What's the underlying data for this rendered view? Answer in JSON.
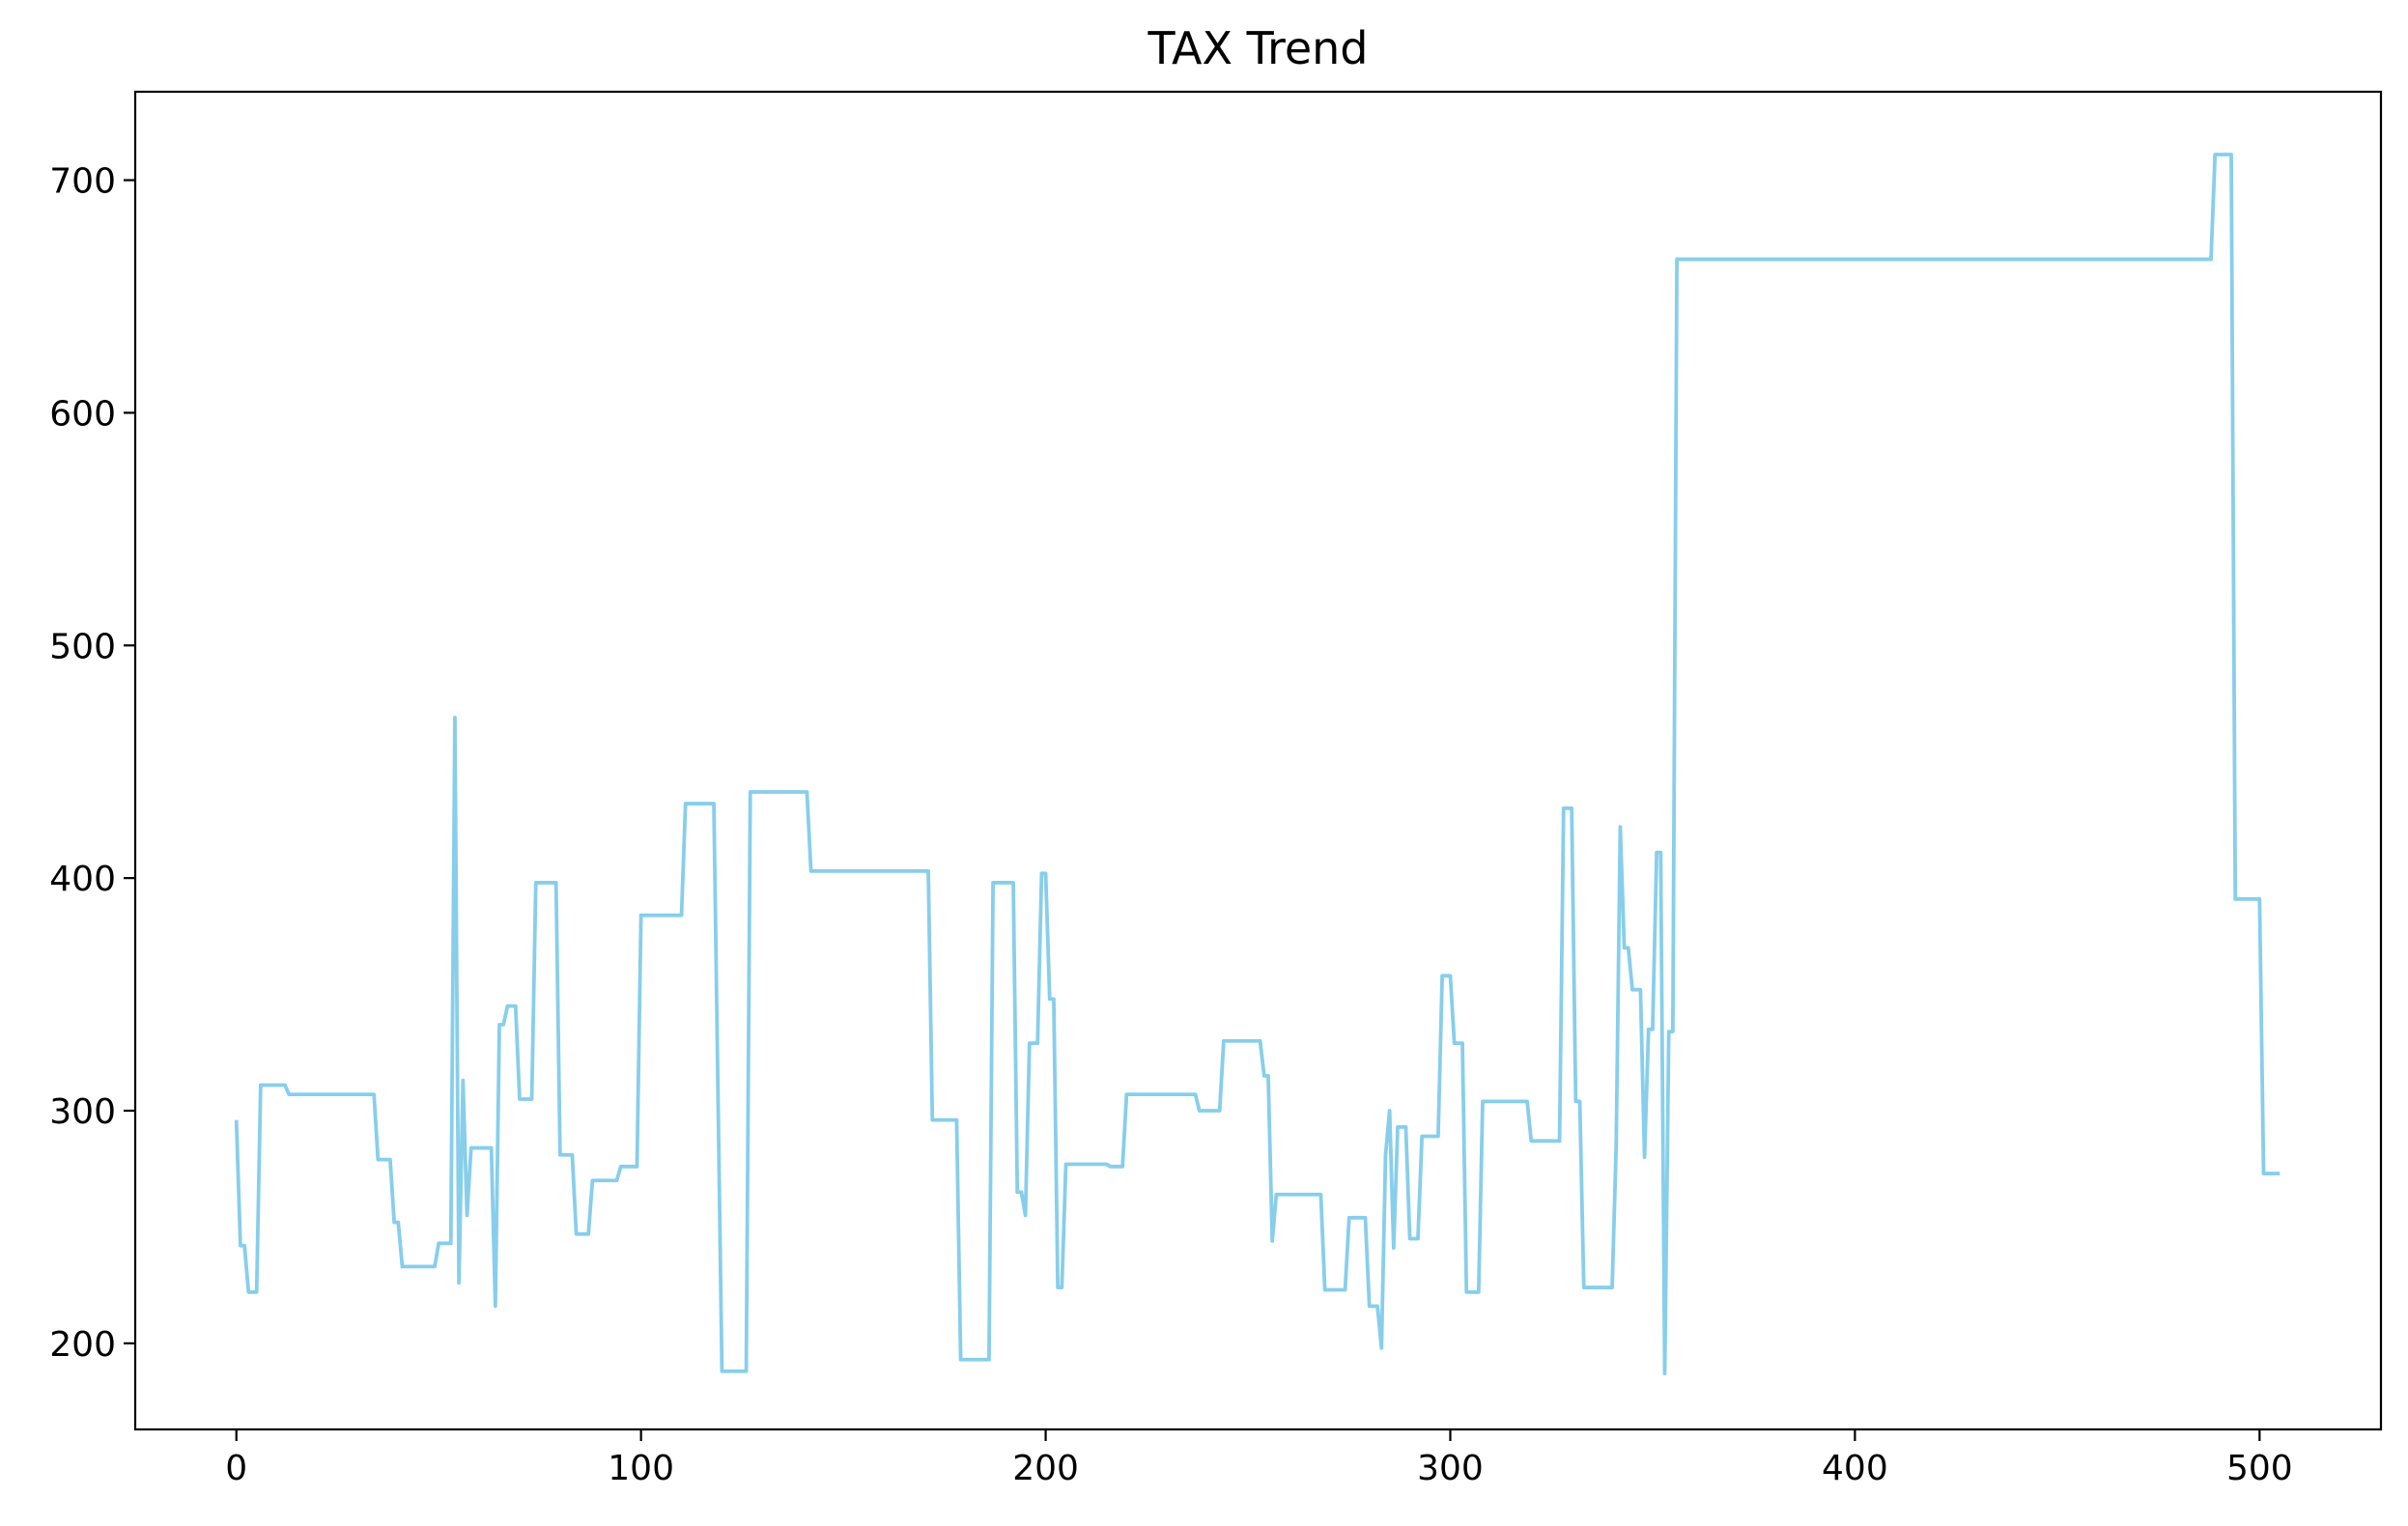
{
  "chart_data": {
    "type": "line",
    "title": "TAX Trend",
    "xlabel": "",
    "ylabel": "",
    "xlim": [
      -25,
      530
    ],
    "ylim": [
      163,
      738
    ],
    "xticks": [
      0,
      100,
      200,
      300,
      400,
      500
    ],
    "yticks": [
      200,
      300,
      400,
      500,
      600,
      700
    ],
    "grid": false,
    "legend": "none",
    "line_color": "#87CEEB",
    "series": [
      {
        "points": [
          [
            0,
            296
          ],
          [
            1,
            242
          ],
          [
            2,
            242
          ],
          [
            3,
            222
          ],
          [
            5,
            222
          ],
          [
            6,
            311
          ],
          [
            12,
            311
          ],
          [
            13,
            307
          ],
          [
            34,
            307
          ],
          [
            35,
            279
          ],
          [
            38,
            279
          ],
          [
            39,
            252
          ],
          [
            40,
            252
          ],
          [
            41,
            233
          ],
          [
            49,
            233
          ],
          [
            50,
            243
          ],
          [
            53,
            243
          ],
          [
            54,
            469
          ],
          [
            55,
            226
          ],
          [
            56,
            313
          ],
          [
            57,
            255
          ],
          [
            58,
            284
          ],
          [
            63,
            284
          ],
          [
            64,
            216
          ],
          [
            65,
            337
          ],
          [
            66,
            337
          ],
          [
            67,
            345
          ],
          [
            69,
            345
          ],
          [
            70,
            305
          ],
          [
            73,
            305
          ],
          [
            74,
            398
          ],
          [
            79,
            398
          ],
          [
            80,
            281
          ],
          [
            83,
            281
          ],
          [
            84,
            247
          ],
          [
            87,
            247
          ],
          [
            88,
            270
          ],
          [
            94,
            270
          ],
          [
            95,
            276
          ],
          [
            99,
            276
          ],
          [
            100,
            384
          ],
          [
            110,
            384
          ],
          [
            111,
            432
          ],
          [
            118,
            432
          ],
          [
            120,
            188
          ],
          [
            126,
            188
          ],
          [
            127,
            437
          ],
          [
            141,
            437
          ],
          [
            142,
            403
          ],
          [
            171,
            403
          ],
          [
            172,
            296
          ],
          [
            178,
            296
          ],
          [
            179,
            193
          ],
          [
            186,
            193
          ],
          [
            187,
            398
          ],
          [
            192,
            398
          ],
          [
            193,
            265
          ],
          [
            194,
            265
          ],
          [
            195,
            255
          ],
          [
            196,
            329
          ],
          [
            198,
            329
          ],
          [
            199,
            402
          ],
          [
            200,
            402
          ],
          [
            201,
            348
          ],
          [
            202,
            348
          ],
          [
            203,
            224
          ],
          [
            204,
            224
          ],
          [
            205,
            277
          ],
          [
            215,
            277
          ],
          [
            216,
            276
          ],
          [
            219,
            276
          ],
          [
            220,
            307
          ],
          [
            237,
            307
          ],
          [
            238,
            300
          ],
          [
            243,
            300
          ],
          [
            244,
            330
          ],
          [
            253,
            330
          ],
          [
            254,
            315
          ],
          [
            255,
            315
          ],
          [
            256,
            244
          ],
          [
            257,
            264
          ],
          [
            268,
            264
          ],
          [
            269,
            223
          ],
          [
            274,
            223
          ],
          [
            275,
            254
          ],
          [
            279,
            254
          ],
          [
            280,
            216
          ],
          [
            282,
            216
          ],
          [
            283,
            198
          ],
          [
            284,
            281
          ],
          [
            285,
            300
          ],
          [
            286,
            241
          ],
          [
            287,
            293
          ],
          [
            289,
            293
          ],
          [
            290,
            245
          ],
          [
            292,
            245
          ],
          [
            293,
            289
          ],
          [
            297,
            289
          ],
          [
            298,
            358
          ],
          [
            300,
            358
          ],
          [
            301,
            329
          ],
          [
            303,
            329
          ],
          [
            304,
            222
          ],
          [
            307,
            222
          ],
          [
            308,
            304
          ],
          [
            319,
            304
          ],
          [
            320,
            287
          ],
          [
            327,
            287
          ],
          [
            328,
            430
          ],
          [
            330,
            430
          ],
          [
            331,
            304
          ],
          [
            332,
            304
          ],
          [
            333,
            224
          ],
          [
            340,
            224
          ],
          [
            341,
            285
          ],
          [
            342,
            422
          ],
          [
            343,
            370
          ],
          [
            344,
            370
          ],
          [
            345,
            352
          ],
          [
            347,
            352
          ],
          [
            348,
            280
          ],
          [
            349,
            335
          ],
          [
            350,
            335
          ],
          [
            351,
            411
          ],
          [
            352,
            411
          ],
          [
            353,
            187
          ],
          [
            354,
            334
          ],
          [
            355,
            334
          ],
          [
            356,
            666
          ],
          [
            488,
            666
          ],
          [
            489,
            711
          ],
          [
            493,
            711
          ],
          [
            494,
            391
          ],
          [
            500,
            391
          ],
          [
            501,
            273
          ],
          [
            505,
            273
          ]
        ]
      }
    ]
  }
}
